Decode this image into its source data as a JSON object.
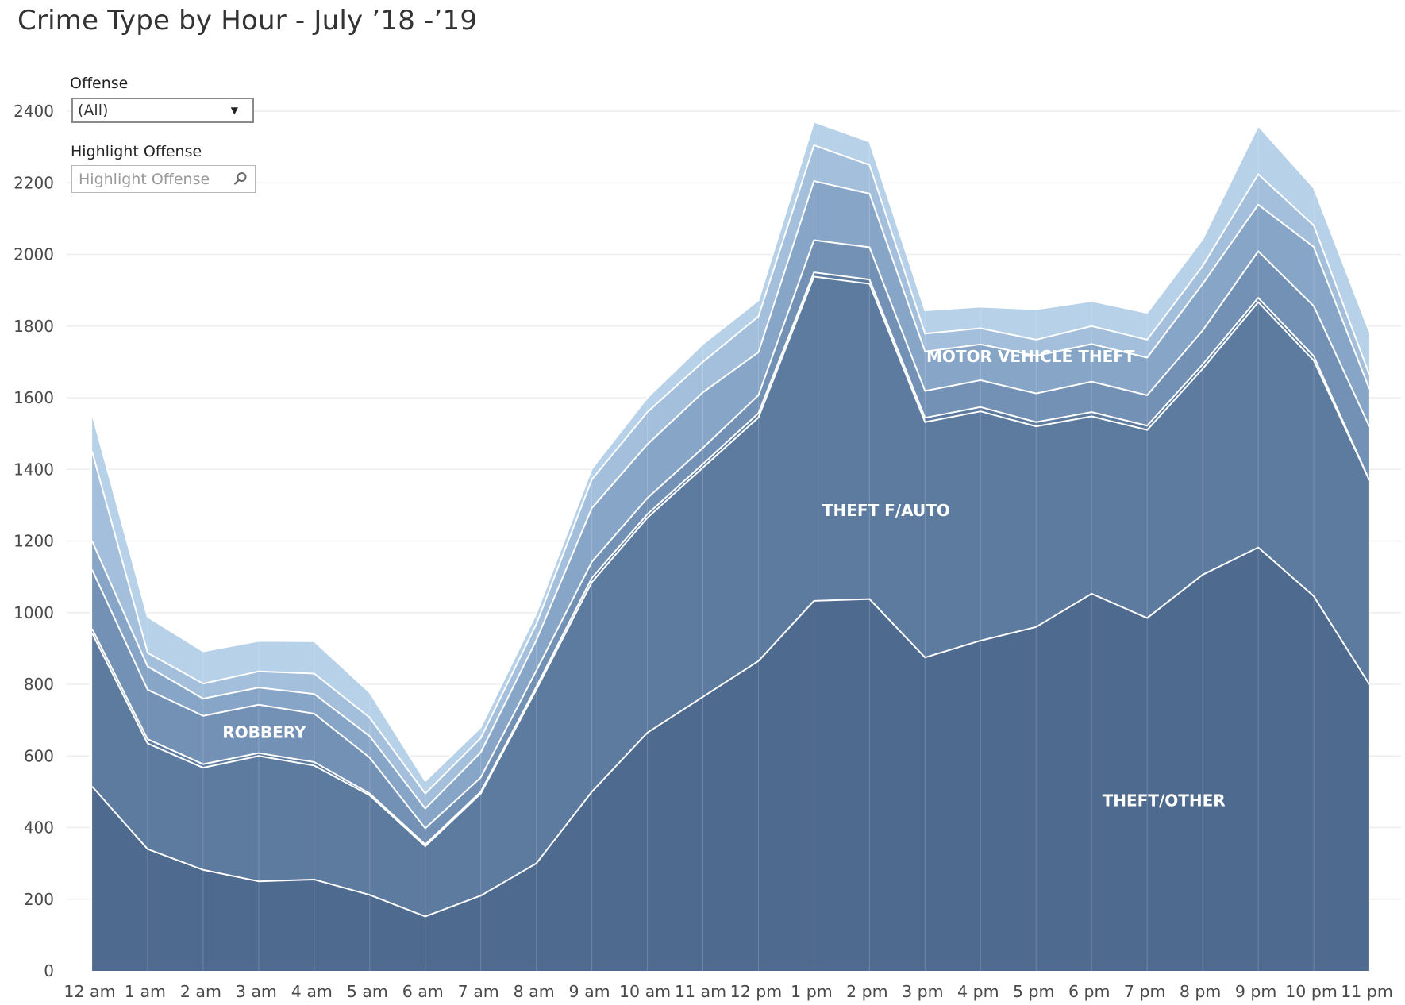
{
  "title": "Crime Type by Hour - July ’18 -’19",
  "filters": {
    "offense_label": "Offense",
    "offense_value": "(All)",
    "highlight_label": "Highlight Offense",
    "highlight_placeholder": "Highlight Offense"
  },
  "chart_data": {
    "type": "area",
    "stacked": true,
    "categories": [
      "12 am",
      "1 am",
      "2 am",
      "3 am",
      "4 am",
      "5 am",
      "6 am",
      "7 am",
      "8 am",
      "9 am",
      "10 am",
      "11 am",
      "12 pm",
      "1 pm",
      "2 pm",
      "3 pm",
      "4 pm",
      "5 pm",
      "6 pm",
      "7 pm",
      "8 pm",
      "9 pm",
      "10 pm",
      "11 pm"
    ],
    "yticks": [
      0,
      200,
      400,
      600,
      800,
      1000,
      1200,
      1400,
      1600,
      1800,
      2000,
      2200,
      2400
    ],
    "ylim": [
      0,
      2460
    ],
    "grid": true,
    "series": [
      {
        "name": "THEFT/OTHER",
        "values": [
          515,
          340,
          282,
          250,
          255,
          212,
          152,
          210,
          300,
          500,
          665,
          765,
          865,
          1033,
          1038,
          875,
          922,
          960,
          1053,
          985,
          1106,
          1182,
          1046,
          800
        ],
        "color": "#4f6a8f",
        "label_anchor": [
          19.3,
          460
        ]
      },
      {
        "name": "THEFT F/AUTO",
        "values": [
          428,
          295,
          285,
          350,
          318,
          278,
          196,
          285,
          485,
          585,
          600,
          640,
          680,
          905,
          880,
          657,
          640,
          560,
          495,
          525,
          575,
          685,
          658,
          570
        ],
        "color": "#5c7b9f",
        "label_anchor": [
          14.3,
          1270
        ]
      },
      {
        "values": [
          12,
          12,
          10,
          8,
          10,
          5,
          5,
          5,
          8,
          12,
          10,
          10,
          12,
          12,
          12,
          12,
          12,
          12,
          12,
          12,
          12,
          12,
          12,
          0
        ],
        "color": "#5c7b9f"
      },
      {
        "name": "ROBBERY",
        "values": [
          165,
          138,
          135,
          135,
          135,
          100,
          45,
          40,
          45,
          45,
          45,
          45,
          50,
          90,
          90,
          75,
          75,
          80,
          85,
          85,
          95,
          130,
          140,
          150
        ],
        "color": "#7391b5",
        "label_anchor": [
          3.1,
          650
        ]
      },
      {
        "name": "MOTOR VEHICLE THEFT",
        "values": [
          80,
          65,
          48,
          48,
          55,
          60,
          55,
          70,
          85,
          150,
          150,
          155,
          120,
          165,
          150,
          110,
          100,
          105,
          105,
          105,
          130,
          130,
          165,
          105
        ],
        "color": "#87a5c7",
        "label_anchor": [
          16.9,
          1700
        ]
      },
      {
        "values": [
          250,
          38,
          42,
          45,
          57,
          52,
          42,
          40,
          45,
          80,
          90,
          85,
          100,
          100,
          80,
          50,
          45,
          45,
          50,
          50,
          50,
          85,
          60,
          40
        ],
        "color": "#a3bfdc"
      },
      {
        "values": [
          105,
          100,
          90,
          85,
          90,
          70,
          35,
          30,
          30,
          30,
          40,
          50,
          45,
          65,
          65,
          65,
          60,
          85,
          70,
          75,
          75,
          135,
          105,
          120
        ],
        "color": "#b6d1e8"
      }
    ]
  },
  "colors": {
    "separator": "#ffffff",
    "gridline": "#ededed",
    "label_text": "#ffffff"
  }
}
